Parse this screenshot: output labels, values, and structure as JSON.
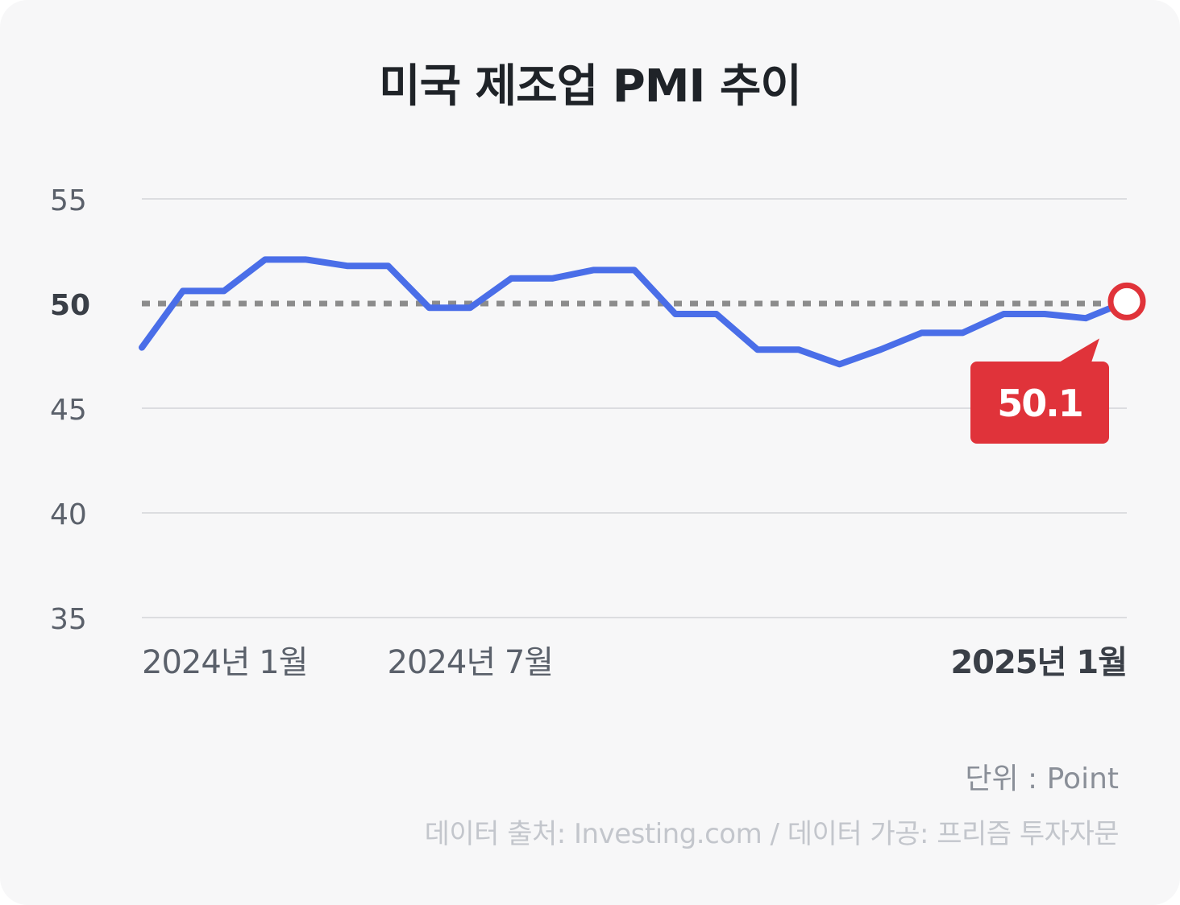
{
  "title": "미국 제조업 PMI 추이",
  "unit_label": "단위 : Point",
  "source_label": "데이터 출처: Investing.com / 데이터 가공: 프리즘 투자자문",
  "colors": {
    "background": "#f7f7f8",
    "line": "#4a6ee8",
    "reference_line": "#8c8c8c",
    "highlight": "#e0333a",
    "grid": "#dcdde0",
    "tick_text": "#5b616b",
    "tick_text_strong": "#3a3f47"
  },
  "chart_data": {
    "type": "line",
    "title": "미국 제조업 PMI 추이",
    "xlabel": "",
    "ylabel": "",
    "ylim": [
      35,
      55
    ],
    "y_ticks": [
      "55",
      "50",
      "45",
      "40",
      "35"
    ],
    "x_tick_labels": [
      {
        "label": "2024년 1월",
        "index": 0,
        "bold": false
      },
      {
        "label": "2024년 7월",
        "index": 8,
        "bold": false
      },
      {
        "label": "2025년 1월",
        "index": 24,
        "bold": true
      }
    ],
    "reference_line": {
      "value": 50,
      "style": "dotted"
    },
    "series": [
      {
        "values": [
          47.9,
          50.6,
          50.6,
          52.1,
          52.1,
          51.8,
          51.8,
          49.8,
          49.8,
          51.2,
          51.2,
          51.6,
          51.6,
          49.5,
          49.5,
          47.8,
          47.8,
          47.1,
          47.8,
          48.6,
          48.6,
          49.5,
          49.5,
          49.3,
          50.1
        ]
      }
    ],
    "highlight": {
      "index": 24,
      "value": 50.1,
      "label": "50.1"
    },
    "grid": true
  }
}
